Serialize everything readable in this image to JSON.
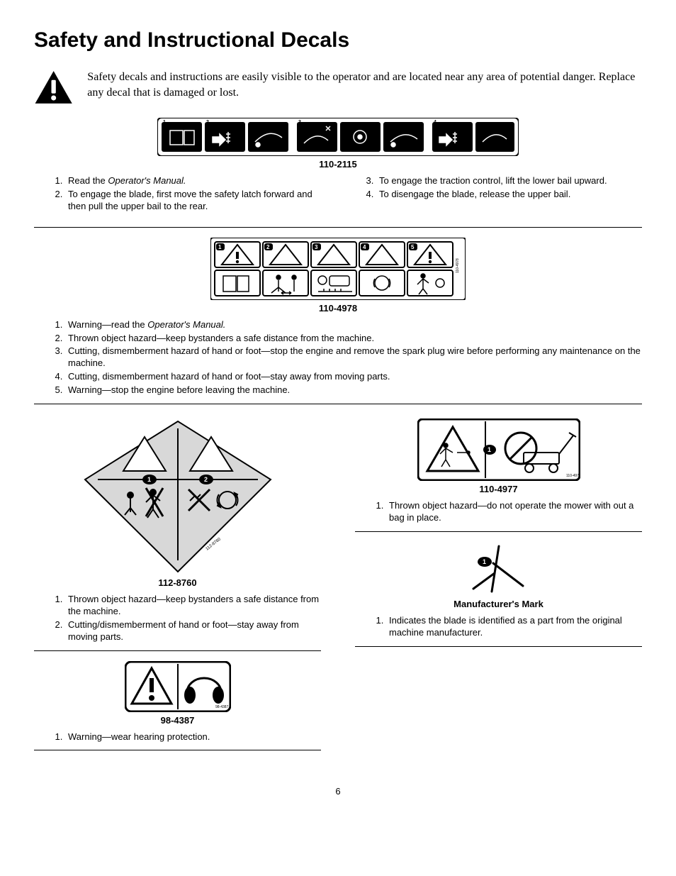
{
  "title": "Safety and Instructional Decals",
  "intro": "Safety decals and instructions are easily visible to the operator and are located near any area of potential danger.  Replace any decal that is damaged or lost.",
  "page_number": "6",
  "decals": {
    "d1": {
      "caption": "110-2115",
      "items_left": [
        "Read the <em>Operator's Manual.</em>",
        "To engage the blade, first move the safety latch forward and then pull the upper bail to the rear."
      ],
      "items_right": [
        "To engage the traction control, lift the lower bail upward.",
        "To disengage the blade, release the upper bail."
      ]
    },
    "d2": {
      "caption": "110-4978",
      "items": [
        "Warning—read the <em>Operator's Manual.</em>",
        "Thrown object hazard—keep bystanders a safe distance from the machine.",
        "Cutting, dismemberment hazard of hand or foot—stop the engine and remove the spark plug wire before performing any maintenance on the machine.",
        "Cutting, dismemberment hazard of hand or foot—stay away from moving parts.",
        "Warning—stop the engine before leaving the machine."
      ]
    },
    "d3": {
      "caption": "112-8760",
      "items": [
        "Thrown object hazard—keep bystanders a safe distance from the machine.",
        "Cutting/dismemberment of hand or foot—stay away from moving parts."
      ]
    },
    "d4": {
      "caption": "98-4387",
      "items": [
        "Warning—wear hearing protection."
      ]
    },
    "d5": {
      "caption": "110-4977",
      "items": [
        "Thrown object hazard—do not operate the mower with out a bag in place."
      ]
    },
    "d6": {
      "caption": "Manufacturer's Mark",
      "items": [
        "Indicates the blade is identified as a part from the original machine manufacturer."
      ]
    }
  }
}
